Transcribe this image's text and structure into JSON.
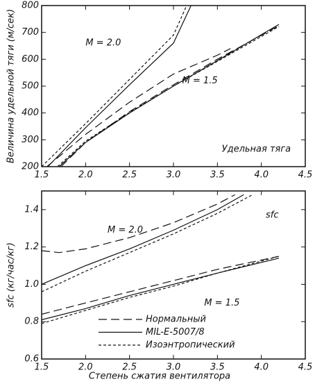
{
  "chart_data": [
    {
      "type": "line",
      "y_label": "Величина удельной тяги (м/сек)",
      "annotations": [
        "M = 2.0",
        "M = 1.5",
        "Удельная тяга"
      ],
      "xlim": [
        1.5,
        4.5
      ],
      "xticks": [
        1.5,
        {
          "value": 2,
          "label": "2.0"
        },
        2.5,
        {
          "value": 3,
          "label": "3.0"
        },
        3.5,
        {
          "value": 4,
          "label": "4.0"
        },
        4.5
      ],
      "ylim": [
        200,
        800
      ],
      "yticks": [
        200,
        300,
        400,
        500,
        600,
        700,
        800
      ],
      "series": [
        {
          "style": "long-dash",
          "curves": [
            {
              "x": [
                1.56,
                2.0,
                2.5,
                3.0,
                3.5,
                3.65
              ],
              "values": [
                200,
                320,
                440,
                545,
                615,
                640
              ]
            },
            {
              "x": [
                1.72,
                2.0,
                2.5,
                3.0,
                3.5,
                4.2
              ],
              "values": [
                200,
                290,
                405,
                505,
                600,
                725
              ]
            }
          ]
        },
        {
          "style": "solid",
          "curves": [
            {
              "x": [
                1.57,
                2.0,
                2.5,
                3.0,
                3.2
              ],
              "values": [
                200,
                345,
                505,
                660,
                800
              ]
            },
            {
              "x": [
                1.7,
                2.0,
                2.5,
                3.0,
                3.5,
                4.2
              ],
              "values": [
                200,
                290,
                400,
                500,
                595,
                730
              ]
            }
          ]
        },
        {
          "style": "short-dash",
          "curves": [
            {
              "x": [
                1.5,
                2.0,
                2.5,
                3.0,
                3.15
              ],
              "values": [
                200,
                360,
                525,
                690,
                800
              ]
            },
            {
              "x": [
                1.68,
                2.0,
                2.5,
                3.0,
                3.5,
                4.2
              ],
              "values": [
                200,
                295,
                402,
                500,
                592,
                722
              ]
            }
          ]
        }
      ]
    },
    {
      "type": "line",
      "y_label": "sfc (кг/час/кг)",
      "x_label": "Степень сжатия вентилятора",
      "annotations": [
        "M = 2.0",
        "M = 1.5",
        "sfc"
      ],
      "xlim": [
        1.5,
        4.5
      ],
      "xticks": [
        1.5,
        {
          "value": 2,
          "label": "2.0"
        },
        2.5,
        {
          "value": 3,
          "label": "3.0"
        },
        3.5,
        {
          "value": 4,
          "label": "4.0"
        },
        4.5
      ],
      "ylim": [
        0.6,
        1.5
      ],
      "yticks": [
        0.6,
        0.8,
        {
          "value": 1,
          "label": "1.0"
        },
        1.2,
        1.4
      ],
      "series": [
        {
          "name": "Нормальный",
          "style": "long-dash",
          "curves": [
            {
              "x": [
                1.5,
                1.7,
                2.0,
                2.5,
                3.0,
                3.5,
                3.7
              ],
              "values": [
                1.18,
                1.17,
                1.19,
                1.25,
                1.33,
                1.43,
                1.48
              ]
            },
            {
              "x": [
                1.5,
                2.0,
                2.5,
                3.0,
                3.5,
                4.2
              ],
              "values": [
                0.84,
                0.9,
                0.96,
                1.02,
                1.08,
                1.15
              ]
            }
          ]
        },
        {
          "name": "MIL-E-5007/8",
          "style": "solid",
          "curves": [
            {
              "x": [
                1.5,
                2.0,
                2.5,
                3.0,
                3.5,
                3.8
              ],
              "values": [
                1.0,
                1.1,
                1.19,
                1.29,
                1.4,
                1.48
              ]
            },
            {
              "x": [
                1.5,
                2.0,
                2.5,
                3.0,
                3.5,
                4.2
              ],
              "values": [
                0.81,
                0.87,
                0.94,
                1.0,
                1.06,
                1.14
              ]
            }
          ]
        },
        {
          "name": "Изоэнтропический",
          "style": "short-dash",
          "curves": [
            {
              "x": [
                1.5,
                2.0,
                2.5,
                3.0,
                3.5,
                3.9
              ],
              "values": [
                0.96,
                1.07,
                1.17,
                1.27,
                1.38,
                1.48
              ]
            },
            {
              "x": [
                1.5,
                2.0,
                2.5,
                3.0,
                3.5,
                4.2
              ],
              "values": [
                0.79,
                0.86,
                0.93,
                0.99,
                1.06,
                1.15
              ]
            }
          ]
        }
      ]
    }
  ]
}
